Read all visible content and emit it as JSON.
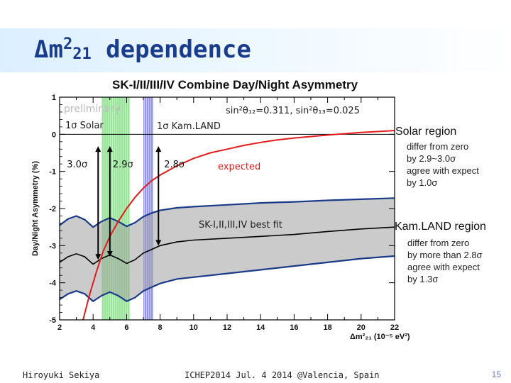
{
  "slide": {
    "title_prefix": "Δm",
    "title_sup": "2",
    "title_sub": "21",
    "title_rest": " dependence",
    "footer_author": "Hiroyuki Sekiya",
    "footer_event": "ICHEP2014  Jul. 4 2014  @Valencia, Spain",
    "page_number": "15"
  },
  "side_notes": {
    "solar_title": "Solar region",
    "solar_lines": [
      "differ from zero",
      "by   2.9~3.0σ",
      "agree with expect",
      "by   1.0σ"
    ],
    "kamland_title": "Kam.LAND region",
    "kamland_lines": [
      "differ from zero",
      "by more than 2.8σ",
      "agree with expect",
      "by 1.3σ"
    ]
  },
  "chart_data": {
    "type": "line",
    "title": "SK-I/II/III/IV Combine Day/Night Asymmetry",
    "xlabel": "Δm²₂₁ (10⁻⁵ eV²)",
    "ylabel": "Day/Night Asymmetry (%)",
    "xlim": [
      2,
      22
    ],
    "ylim": [
      -5,
      1
    ],
    "x_ticks": [
      2,
      4,
      6,
      8,
      10,
      12,
      14,
      16,
      18,
      20,
      22
    ],
    "y_ticks": [
      1,
      0,
      -1,
      -2,
      -3,
      -4,
      -5
    ],
    "x_tick_labels": [
      "2",
      "4",
      "6",
      "8",
      "10",
      "12",
      "14",
      "16",
      "18",
      "20",
      "22"
    ],
    "y_tick_labels": [
      "1",
      "0",
      "-1",
      "-2",
      "-3",
      "-4",
      "-5"
    ],
    "series": [
      {
        "name": "SK-I,II,III,IV best fit",
        "color": "#000000",
        "x": [
          2,
          2.5,
          3,
          3.5,
          4,
          4.5,
          5,
          5.5,
          6,
          6.5,
          7,
          7.5,
          8,
          9,
          10,
          12,
          14,
          16,
          18,
          20,
          22
        ],
        "y": [
          -3.45,
          -3.3,
          -3.22,
          -3.3,
          -3.5,
          -3.35,
          -3.25,
          -3.35,
          -3.48,
          -3.38,
          -3.2,
          -3.1,
          -3.0,
          -2.9,
          -2.85,
          -2.8,
          -2.75,
          -2.7,
          -2.62,
          -2.55,
          -2.5
        ]
      },
      {
        "name": "1σ band upper",
        "x": [
          2,
          2.5,
          3,
          3.5,
          4,
          4.5,
          5,
          5.5,
          6,
          6.5,
          7,
          7.5,
          8,
          9,
          10,
          12,
          14,
          16,
          18,
          20,
          22
        ],
        "y": [
          -2.45,
          -2.28,
          -2.2,
          -2.3,
          -2.5,
          -2.35,
          -2.25,
          -2.35,
          -2.48,
          -2.38,
          -2.22,
          -2.12,
          -2.05,
          -1.98,
          -1.95,
          -1.9,
          -1.85,
          -1.82,
          -1.78,
          -1.75,
          -1.72
        ]
      },
      {
        "name": "1σ band lower",
        "x": [
          2,
          2.5,
          3,
          3.5,
          4,
          4.5,
          5,
          5.5,
          6,
          6.5,
          7,
          7.5,
          8,
          9,
          10,
          12,
          14,
          16,
          18,
          20,
          22
        ],
        "y": [
          -4.45,
          -4.3,
          -4.22,
          -4.3,
          -4.5,
          -4.35,
          -4.25,
          -4.35,
          -4.5,
          -4.4,
          -4.22,
          -4.12,
          -4.02,
          -3.9,
          -3.85,
          -3.75,
          -3.65,
          -3.55,
          -3.45,
          -3.35,
          -3.28
        ]
      },
      {
        "name": "expected",
        "color": "#e21c1c",
        "x": [
          3.4,
          3.8,
          4.2,
          4.6,
          5.0,
          5.5,
          6.0,
          6.5,
          7.0,
          7.5,
          8.0,
          9.0,
          10.0,
          11.0,
          12.0,
          13.0,
          14.0,
          15.0,
          16.0,
          18.0,
          20.0,
          22.0
        ],
        "y": [
          -5.0,
          -4.3,
          -3.7,
          -3.15,
          -2.75,
          -2.35,
          -2.0,
          -1.7,
          -1.45,
          -1.25,
          -1.1,
          -0.85,
          -0.65,
          -0.5,
          -0.4,
          -0.3,
          -0.22,
          -0.15,
          -0.1,
          -0.02,
          0.05,
          0.1
        ]
      }
    ],
    "regions": [
      {
        "name": "1σ Solar",
        "x_range": [
          4.5,
          6.2
        ],
        "color": "#5bd35b"
      },
      {
        "name": "1σ Kam.LAND",
        "x_range": [
          7.0,
          7.6
        ],
        "color": "#4848e0"
      }
    ],
    "arrows": [
      {
        "label": "3.0σ",
        "x": 4.3,
        "y_from": -3.38,
        "y_to": -0.32
      },
      {
        "label": "2.9σ",
        "x": 5.0,
        "y_from": -3.3,
        "y_to": -0.32
      },
      {
        "label": "2.8σ",
        "x": 7.9,
        "y_from": -3.0,
        "y_to": -0.32
      }
    ],
    "annotations": {
      "preliminary": "preliminary",
      "solar_label": "1σ Solar",
      "kamland_label": "1σ Kam.LAND",
      "mixing": "sin²θ₁₂=0.311, sin²θ₁₃=0.025",
      "expected": "expected",
      "best_fit": "SK-I,II,III,IV best fit",
      "xlabel_unit": "(10⁻⁵ eV²)"
    }
  }
}
